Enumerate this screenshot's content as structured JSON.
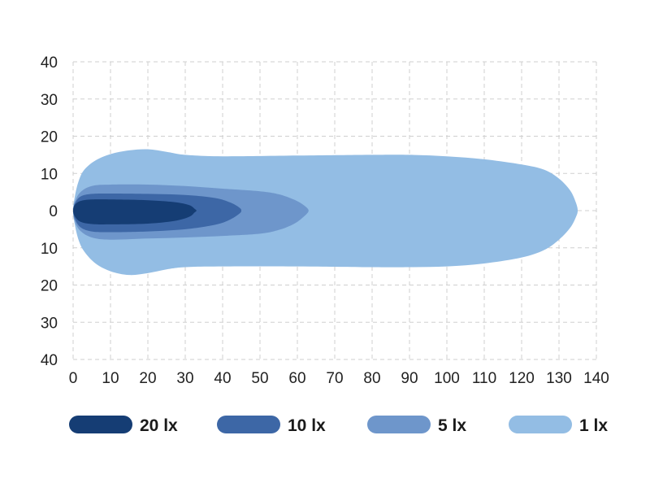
{
  "chart_data": {
    "type": "area",
    "title": "",
    "xlabel": "",
    "ylabel": "",
    "xlim": [
      0,
      140
    ],
    "ylim": [
      -40,
      40
    ],
    "x_ticks": [
      0,
      10,
      20,
      30,
      40,
      50,
      60,
      70,
      80,
      90,
      100,
      110,
      120,
      130,
      140
    ],
    "x_tick_labels": [
      "0",
      "10",
      "20",
      "30",
      "40",
      "50",
      "60",
      "70",
      "80",
      "90",
      "100",
      "110",
      "120",
      "130",
      "140"
    ],
    "y_ticks": [
      40,
      30,
      20,
      10,
      0,
      -10,
      -20,
      -30,
      -40
    ],
    "y_tick_labels": [
      "40",
      "30",
      "20",
      "10",
      "0",
      "10",
      "20",
      "30",
      "40"
    ],
    "grid": true,
    "grid_style": "dashed",
    "legend_position": "bottom",
    "series": [
      {
        "name": "1 lx",
        "color": "#93bde4",
        "upper": [
          [
            0,
            0
          ],
          [
            0.5,
            4
          ],
          [
            1.5,
            8
          ],
          [
            3,
            11
          ],
          [
            6,
            13.5
          ],
          [
            10,
            15.2
          ],
          [
            15,
            16.2
          ],
          [
            20,
            16.5
          ],
          [
            25,
            15.8
          ],
          [
            30,
            15
          ],
          [
            40,
            14.6
          ],
          [
            60,
            14.8
          ],
          [
            80,
            15
          ],
          [
            90,
            15
          ],
          [
            100,
            14.6
          ],
          [
            110,
            13.8
          ],
          [
            120,
            12.4
          ],
          [
            126,
            11
          ],
          [
            130,
            8.6
          ],
          [
            133,
            5.4
          ],
          [
            134.5,
            2.2
          ],
          [
            135,
            0
          ]
        ],
        "lower": [
          [
            0,
            0
          ],
          [
            0.5,
            -4
          ],
          [
            1.5,
            -8
          ],
          [
            3,
            -11
          ],
          [
            6,
            -14.2
          ],
          [
            10,
            -16.3
          ],
          [
            15,
            -17.3
          ],
          [
            20,
            -16.8
          ],
          [
            25,
            -15.8
          ],
          [
            30,
            -15.2
          ],
          [
            40,
            -15
          ],
          [
            60,
            -15
          ],
          [
            80,
            -15.2
          ],
          [
            90,
            -15.2
          ],
          [
            100,
            -15
          ],
          [
            110,
            -14.2
          ],
          [
            120,
            -12.6
          ],
          [
            126,
            -10.6
          ],
          [
            130,
            -7.8
          ],
          [
            133,
            -4.6
          ],
          [
            134.5,
            -1.8
          ],
          [
            135,
            0
          ]
        ]
      },
      {
        "name": "5 lx",
        "color": "#6e96cb",
        "upper": [
          [
            0,
            0
          ],
          [
            0.5,
            2.5
          ],
          [
            2,
            5
          ],
          [
            5,
            6.6
          ],
          [
            10,
            7
          ],
          [
            20,
            7
          ],
          [
            30,
            6.6
          ],
          [
            40,
            5.9
          ],
          [
            50,
            5.2
          ],
          [
            55,
            4.4
          ],
          [
            59,
            3
          ],
          [
            61.5,
            1.6
          ],
          [
            63,
            0
          ]
        ],
        "lower": [
          [
            0,
            0
          ],
          [
            0.5,
            -3
          ],
          [
            2,
            -5.5
          ],
          [
            5,
            -7.2
          ],
          [
            10,
            -7.8
          ],
          [
            20,
            -7.5
          ],
          [
            30,
            -7.2
          ],
          [
            40,
            -6.8
          ],
          [
            50,
            -6.2
          ],
          [
            55,
            -5.2
          ],
          [
            59,
            -3.6
          ],
          [
            61.5,
            -1.8
          ],
          [
            63,
            0
          ]
        ]
      },
      {
        "name": "10 lx",
        "color": "#3d67a6",
        "upper": [
          [
            0,
            0
          ],
          [
            0.5,
            2
          ],
          [
            2,
            3.8
          ],
          [
            5,
            4.5
          ],
          [
            10,
            4.6
          ],
          [
            20,
            4.5
          ],
          [
            30,
            4.2
          ],
          [
            38,
            3.4
          ],
          [
            42,
            2.2
          ],
          [
            44.5,
            0.8
          ],
          [
            45,
            0
          ]
        ],
        "lower": [
          [
            0,
            0
          ],
          [
            0.5,
            -2.3
          ],
          [
            2,
            -4.5
          ],
          [
            5,
            -5.6
          ],
          [
            10,
            -5.8
          ],
          [
            20,
            -5.6
          ],
          [
            30,
            -5
          ],
          [
            38,
            -3.8
          ],
          [
            42,
            -2.4
          ],
          [
            44.5,
            -0.8
          ],
          [
            45,
            0
          ]
        ]
      },
      {
        "name": "20 lx",
        "color": "#153d74",
        "upper": [
          [
            0,
            0
          ],
          [
            0.5,
            1.6
          ],
          [
            2,
            2.6
          ],
          [
            5,
            3
          ],
          [
            10,
            3
          ],
          [
            20,
            2.8
          ],
          [
            27,
            2.3
          ],
          [
            31,
            1.5
          ],
          [
            32.5,
            0.5
          ],
          [
            33,
            0
          ]
        ],
        "lower": [
          [
            0,
            0
          ],
          [
            0.5,
            -1.6
          ],
          [
            2,
            -3
          ],
          [
            5,
            -3.6
          ],
          [
            10,
            -3.7
          ],
          [
            20,
            -3.5
          ],
          [
            27,
            -2.8
          ],
          [
            31,
            -1.7
          ],
          [
            32.5,
            -0.5
          ],
          [
            33,
            0
          ]
        ]
      }
    ],
    "legend": [
      {
        "label": "20 lx",
        "color": "#153d74"
      },
      {
        "label": "10 lx",
        "color": "#3d67a6"
      },
      {
        "label": "5 lx",
        "color": "#6e96cb"
      },
      {
        "label": "1 lx",
        "color": "#93bde4"
      }
    ]
  }
}
